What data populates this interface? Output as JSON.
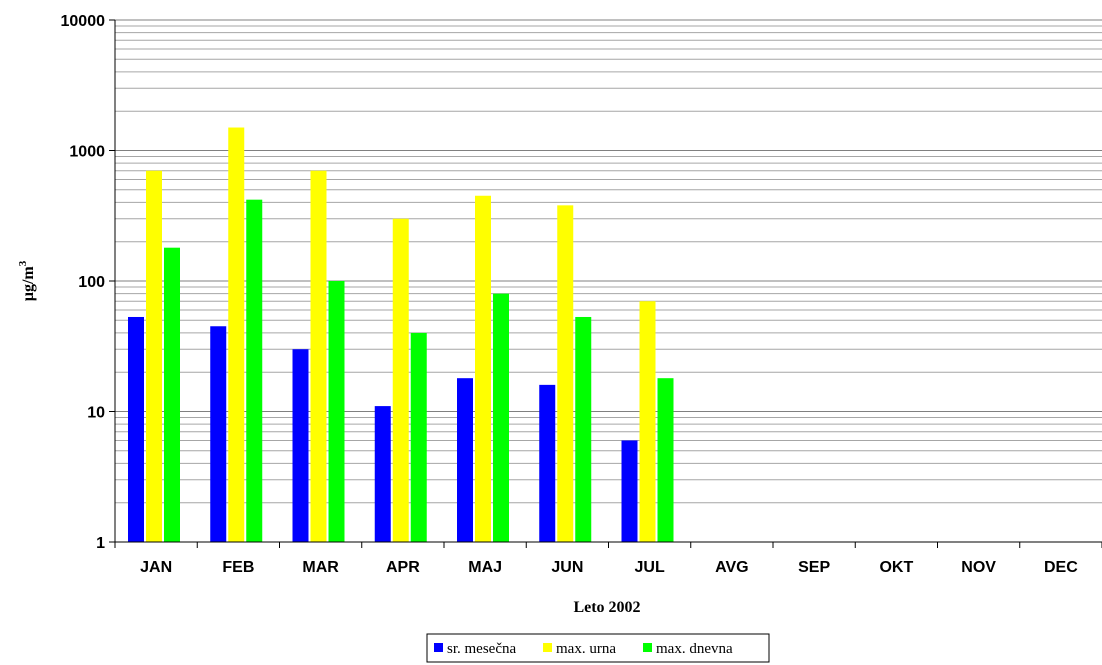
{
  "chart_data": {
    "type": "bar",
    "categories": [
      "JAN",
      "FEB",
      "MAR",
      "APR",
      "MAJ",
      "JUN",
      "JUL",
      "AVG",
      "SEP",
      "OKT",
      "NOV",
      "DEC"
    ],
    "series": [
      {
        "name": "sr. mesečna",
        "color": "#0000ff",
        "values": [
          53,
          45,
          30,
          11,
          18,
          16,
          6,
          null,
          null,
          null,
          null,
          null
        ]
      },
      {
        "name": "max. urna",
        "color": "#ffff00",
        "values": [
          700,
          1500,
          700,
          300,
          450,
          380,
          70,
          null,
          null,
          null,
          null,
          null
        ]
      },
      {
        "name": "max. dnevna",
        "color": "#00ff00",
        "values": [
          180,
          420,
          100,
          40,
          80,
          53,
          18,
          null,
          null,
          null,
          null,
          null
        ]
      }
    ],
    "yscale": "log",
    "ylim": [
      1,
      10000
    ],
    "yticks": [
      "1",
      "10",
      "100",
      "1000",
      "10000"
    ],
    "xlabel": "Leto 2002",
    "ylabel_base": "µg/m",
    "ylabel_sup": "3",
    "grid": true,
    "legend_position": "bottom"
  }
}
